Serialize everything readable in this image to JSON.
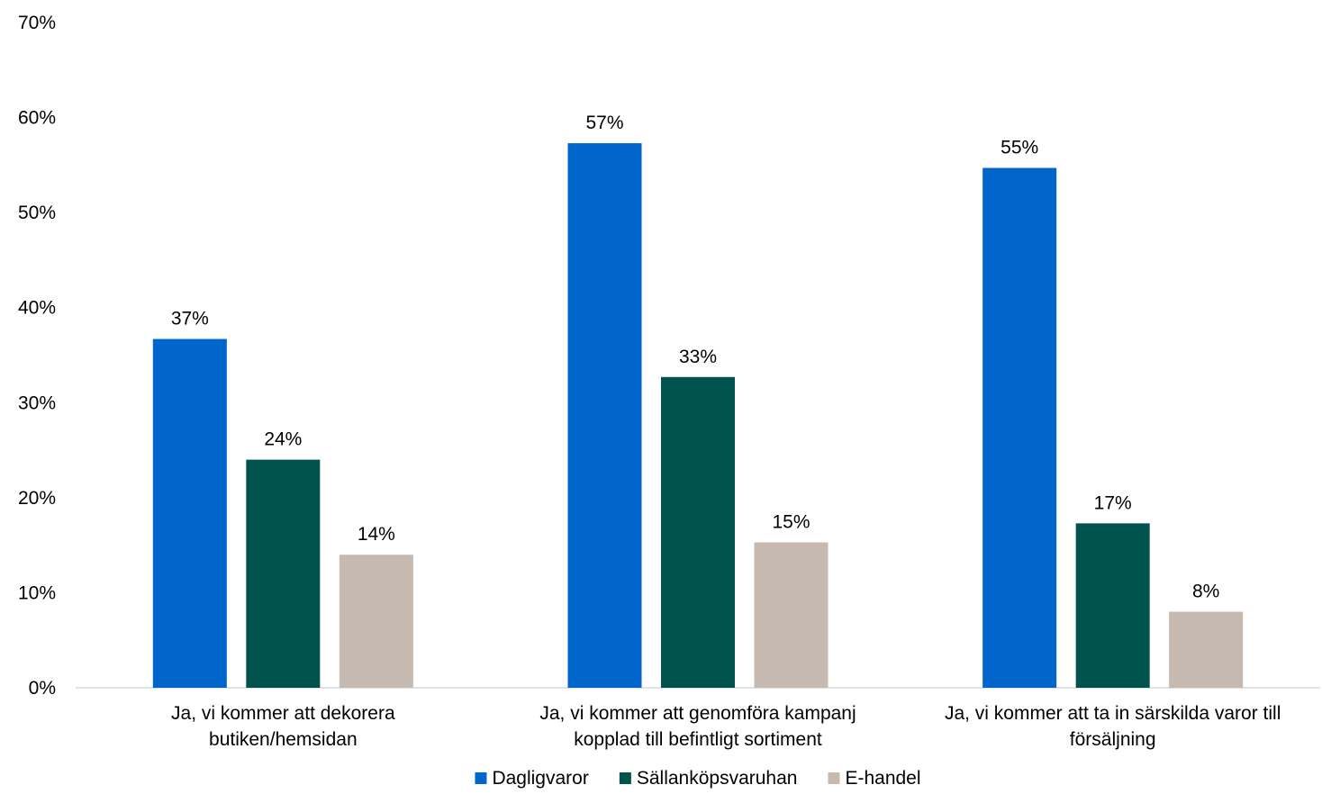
{
  "chart_data": {
    "type": "bar",
    "title": "",
    "xlabel": "",
    "ylabel": "",
    "ylim": [
      0,
      70
    ],
    "y_ticks": [
      "0%",
      "10%",
      "20%",
      "30%",
      "40%",
      "50%",
      "60%",
      "70%"
    ],
    "grid": false,
    "legend_position": "bottom",
    "categories": [
      [
        "Ja, vi kommer att dekorera",
        "butiken/hemsidan"
      ],
      [
        "Ja, vi kommer att genomföra kampanj",
        "kopplad till befintligt sortiment"
      ],
      [
        "Ja, vi kommer att ta in särskilda varor till",
        "försäljning"
      ]
    ],
    "series": [
      {
        "name": "Dagligvaror",
        "color": "#0066cc",
        "values": [
          36.7,
          57.3,
          54.7
        ],
        "labels": [
          "37%",
          "57%",
          "55%"
        ]
      },
      {
        "name": "Sällanköpsvaruhan",
        "color": "#00524d",
        "values": [
          24.0,
          32.7,
          17.3
        ],
        "labels": [
          "24%",
          "33%",
          "17%"
        ]
      },
      {
        "name": "E-handel",
        "color": "#c5b9b0",
        "values": [
          14.0,
          15.3,
          8.0
        ],
        "labels": [
          "14%",
          "15%",
          "8%"
        ]
      }
    ]
  }
}
